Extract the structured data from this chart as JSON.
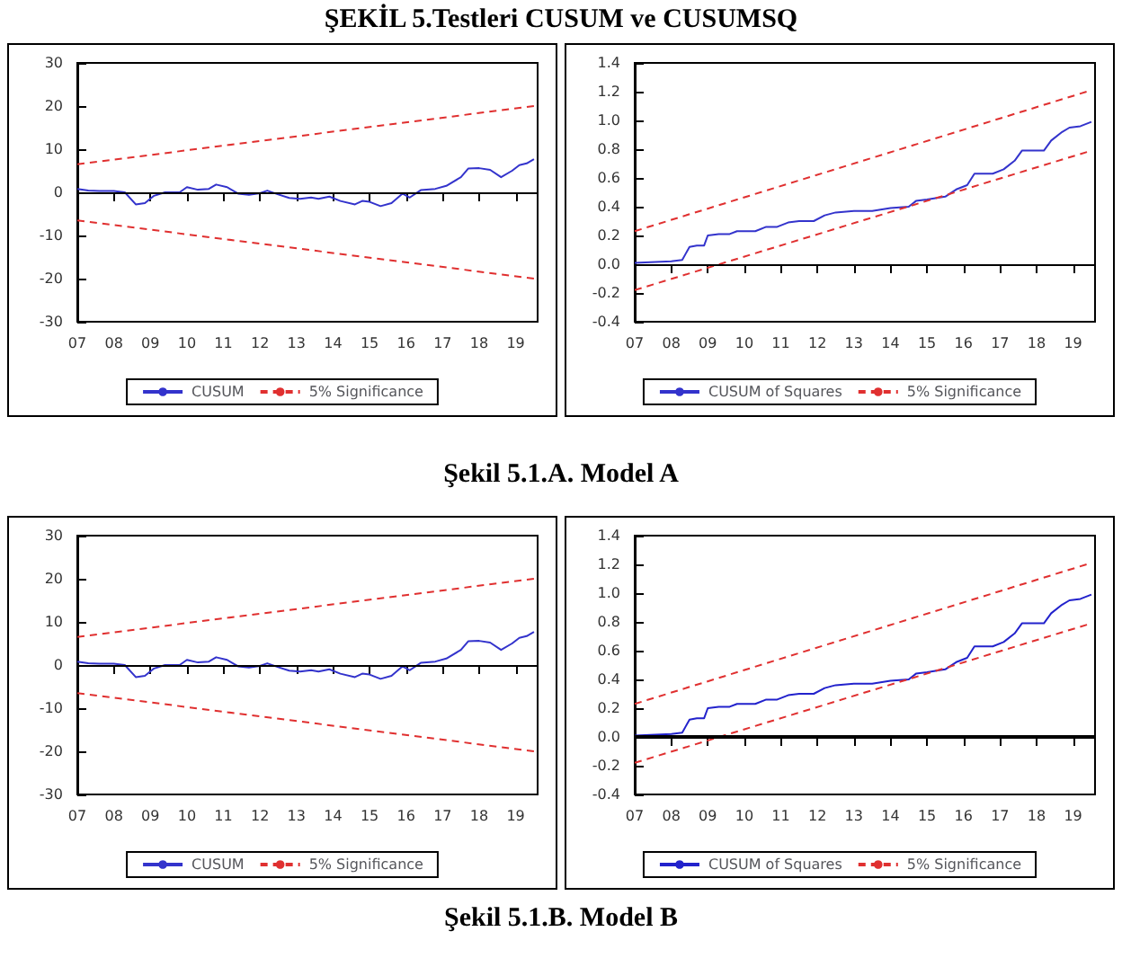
{
  "chart_data": [
    {
      "type": "line",
      "title": "ŞEKİL 5.Testleri CUSUM ve CUSUMSQ",
      "xlim": [
        2007,
        2019.6
      ],
      "ylim": [
        -30,
        30
      ],
      "yticks": [
        -30,
        -20,
        -10,
        0,
        10,
        20,
        30
      ],
      "xticks": [
        {
          "value": 2007,
          "label": "07"
        },
        {
          "value": 2008,
          "label": "08"
        },
        {
          "value": 2009,
          "label": "09"
        },
        {
          "value": 2010,
          "label": "10"
        },
        {
          "value": 2011,
          "label": "11"
        },
        {
          "value": 2012,
          "label": "12"
        },
        {
          "value": 2013,
          "label": "13"
        },
        {
          "value": 2014,
          "label": "14"
        },
        {
          "value": 2015,
          "label": "15"
        },
        {
          "value": 2016,
          "label": "16"
        },
        {
          "value": 2017,
          "label": "17"
        },
        {
          "value": 2018,
          "label": "18"
        },
        {
          "value": 2019,
          "label": "19"
        }
      ],
      "legend": "bottom",
      "ref_lines": [
        {
          "axis": "y",
          "value": 0,
          "color": "#000000"
        }
      ],
      "series": [
        {
          "name": "CUSUM",
          "color": "#3333cc",
          "line_style": "solid",
          "x": [
            2007,
            2007.3,
            2007.6,
            2008,
            2008.3,
            2008.6,
            2008.85,
            2009.1,
            2009.4,
            2009.8,
            2010,
            2010.3,
            2010.6,
            2010.8,
            2011.1,
            2011.4,
            2011.7,
            2012,
            2012.2,
            2012.5,
            2012.8,
            2013.1,
            2013.4,
            2013.6,
            2013.9,
            2014.2,
            2014.6,
            2014.8,
            2015,
            2015.3,
            2015.6,
            2015.9,
            2016.1,
            2016.4,
            2016.8,
            2017.1,
            2017.5,
            2017.7,
            2018,
            2018.3,
            2018.6,
            2018.9,
            2019.1,
            2019.3,
            2019.5
          ],
          "values": [
            0.8,
            0.4,
            0.3,
            0.3,
            0,
            -2.8,
            -2.5,
            -0.8,
            0,
            0,
            1.2,
            0.6,
            0.8,
            1.8,
            1.2,
            -0.3,
            -0.6,
            -0.2,
            0.4,
            -0.5,
            -1.3,
            -1.5,
            -1.2,
            -1.5,
            -1,
            -2,
            -2.8,
            -2,
            -2.2,
            -3.2,
            -2.5,
            -0.3,
            -1.2,
            0.5,
            0.8,
            1.5,
            3.5,
            5.5,
            5.6,
            5.2,
            3.5,
            5,
            6.3,
            6.7,
            7.7
          ]
        },
        {
          "name": "5% Significance",
          "color": "#e03030",
          "line_style": "dashed",
          "x": [
            2007,
            2019.5
          ],
          "values": [
            6.5,
            20
          ]
        },
        {
          "color": "#e03030",
          "line_style": "dashed",
          "x": [
            2007,
            2019.5
          ],
          "values": [
            -6.5,
            -20
          ]
        }
      ]
    },
    {
      "type": "line",
      "xlim": [
        2007,
        2019.6
      ],
      "ylim": [
        -0.4,
        1.4
      ],
      "yticks": [
        {
          "value": -0.4,
          "label": "-0.4"
        },
        {
          "value": -0.2,
          "label": "-0.2"
        },
        {
          "value": 0,
          "label": "0.0"
        },
        {
          "value": 0.2,
          "label": "0.2"
        },
        {
          "value": 0.4,
          "label": "0.4"
        },
        {
          "value": 0.6,
          "label": "0.6"
        },
        {
          "value": 0.8,
          "label": "0.8"
        },
        {
          "value": 1,
          "label": "1.0"
        },
        {
          "value": 1.2,
          "label": "1.2"
        },
        {
          "value": 1.4,
          "label": "1.4"
        }
      ],
      "xticks": [
        {
          "value": 2007,
          "label": "07"
        },
        {
          "value": 2008,
          "label": "08"
        },
        {
          "value": 2009,
          "label": "09"
        },
        {
          "value": 2010,
          "label": "10"
        },
        {
          "value": 2011,
          "label": "11"
        },
        {
          "value": 2012,
          "label": "12"
        },
        {
          "value": 2013,
          "label": "13"
        },
        {
          "value": 2014,
          "label": "14"
        },
        {
          "value": 2015,
          "label": "15"
        },
        {
          "value": 2016,
          "label": "16"
        },
        {
          "value": 2017,
          "label": "17"
        },
        {
          "value": 2018,
          "label": "18"
        },
        {
          "value": 2019,
          "label": "19"
        }
      ],
      "legend": "bottom",
      "ref_lines": [
        {
          "axis": "y",
          "value": 0,
          "color": "#000000"
        }
      ],
      "annotations": [
        "Şekil 5.1.A. Model A"
      ],
      "series": [
        {
          "name": "CUSUM of Squares",
          "color": "#3333cc",
          "line_style": "solid",
          "x": [
            2007,
            2008,
            2008.3,
            2008.5,
            2008.7,
            2008.9,
            2009,
            2009.3,
            2009.6,
            2009.8,
            2010.3,
            2010.6,
            2010.9,
            2011.2,
            2011.5,
            2011.9,
            2012.2,
            2012.5,
            2013,
            2013.5,
            2014,
            2014.5,
            2014.7,
            2015,
            2015.5,
            2015.8,
            2016.1,
            2016.3,
            2016.8,
            2017.1,
            2017.4,
            2017.6,
            2018.2,
            2018.4,
            2018.7,
            2018.9,
            2019.2,
            2019.5
          ],
          "values": [
            0.01,
            0.02,
            0.03,
            0.12,
            0.13,
            0.13,
            0.2,
            0.21,
            0.21,
            0.23,
            0.23,
            0.26,
            0.26,
            0.29,
            0.3,
            0.3,
            0.34,
            0.36,
            0.37,
            0.37,
            0.39,
            0.4,
            0.44,
            0.45,
            0.47,
            0.52,
            0.55,
            0.63,
            0.63,
            0.66,
            0.72,
            0.79,
            0.79,
            0.86,
            0.92,
            0.95,
            0.96,
            0.99
          ]
        },
        {
          "name": "5% Significance",
          "color": "#e03030",
          "line_style": "dashed",
          "x": [
            2007,
            2019.5
          ],
          "values": [
            0.23,
            1.21
          ]
        },
        {
          "color": "#e03030",
          "line_style": "dashed",
          "x": [
            2007,
            2019.5
          ],
          "values": [
            -0.18,
            0.79
          ]
        }
      ]
    },
    {
      "type": "line",
      "xlim": [
        2007,
        2019.6
      ],
      "ylim": [
        -30,
        30
      ],
      "yticks": [
        -30,
        -20,
        -10,
        0,
        10,
        20,
        30
      ],
      "xticks": [
        {
          "value": 2007,
          "label": "07"
        },
        {
          "value": 2008,
          "label": "08"
        },
        {
          "value": 2009,
          "label": "09"
        },
        {
          "value": 2010,
          "label": "10"
        },
        {
          "value": 2011,
          "label": "11"
        },
        {
          "value": 2012,
          "label": "12"
        },
        {
          "value": 2013,
          "label": "13"
        },
        {
          "value": 2014,
          "label": "14"
        },
        {
          "value": 2015,
          "label": "15"
        },
        {
          "value": 2016,
          "label": "16"
        },
        {
          "value": 2017,
          "label": "17"
        },
        {
          "value": 2018,
          "label": "18"
        },
        {
          "value": 2019,
          "label": "19"
        }
      ],
      "legend": "bottom",
      "ref_lines": [
        {
          "axis": "y",
          "value": 0,
          "color": "#000000"
        }
      ],
      "series": [
        {
          "name": "CUSUM",
          "color": "#3333cc",
          "line_style": "solid",
          "x": [
            2007,
            2007.3,
            2007.6,
            2008,
            2008.3,
            2008.6,
            2008.85,
            2009.1,
            2009.4,
            2009.8,
            2010,
            2010.3,
            2010.6,
            2010.8,
            2011.1,
            2011.4,
            2011.7,
            2012,
            2012.2,
            2012.5,
            2012.8,
            2013.1,
            2013.4,
            2013.6,
            2013.9,
            2014.2,
            2014.6,
            2014.8,
            2015,
            2015.3,
            2015.6,
            2015.9,
            2016.1,
            2016.4,
            2016.8,
            2017.1,
            2017.5,
            2017.7,
            2018,
            2018.3,
            2018.6,
            2018.9,
            2019.1,
            2019.3,
            2019.5
          ],
          "values": [
            0.8,
            0.4,
            0.3,
            0.3,
            0,
            -2.8,
            -2.5,
            -0.8,
            0,
            0,
            1.2,
            0.6,
            0.8,
            1.8,
            1.2,
            -0.3,
            -0.6,
            -0.2,
            0.4,
            -0.5,
            -1.3,
            -1.5,
            -1.2,
            -1.5,
            -1,
            -2,
            -2.8,
            -2,
            -2.2,
            -3.2,
            -2.5,
            -0.3,
            -1.2,
            0.5,
            0.8,
            1.5,
            3.5,
            5.5,
            5.6,
            5.2,
            3.5,
            5,
            6.3,
            6.7,
            7.7
          ]
        },
        {
          "name": "5% Significance",
          "color": "#e03030",
          "line_style": "dashed",
          "x": [
            2007,
            2019.5
          ],
          "values": [
            6.5,
            20
          ]
        },
        {
          "color": "#e03030",
          "line_style": "dashed",
          "x": [
            2007,
            2019.5
          ],
          "values": [
            -6.5,
            -20
          ]
        }
      ]
    },
    {
      "type": "line",
      "xlim": [
        2007,
        2019.6
      ],
      "ylim": [
        -0.4,
        1.4
      ],
      "yticks": [
        {
          "value": -0.4,
          "label": "-0.4"
        },
        {
          "value": -0.2,
          "label": "-0.2"
        },
        {
          "value": 0,
          "label": "0.0"
        },
        {
          "value": 0.2,
          "label": "0.2"
        },
        {
          "value": 0.4,
          "label": "0.4"
        },
        {
          "value": 0.6,
          "label": "0.6"
        },
        {
          "value": 0.8,
          "label": "0.8"
        },
        {
          "value": 1,
          "label": "1.0"
        },
        {
          "value": 1.2,
          "label": "1.2"
        },
        {
          "value": 1.4,
          "label": "1.4"
        }
      ],
      "xticks": [
        {
          "value": 2007,
          "label": "07"
        },
        {
          "value": 2008,
          "label": "08"
        },
        {
          "value": 2009,
          "label": "09"
        },
        {
          "value": 2010,
          "label": "10"
        },
        {
          "value": 2011,
          "label": "11"
        },
        {
          "value": 2012,
          "label": "12"
        },
        {
          "value": 2013,
          "label": "13"
        },
        {
          "value": 2014,
          "label": "14"
        },
        {
          "value": 2015,
          "label": "15"
        },
        {
          "value": 2016,
          "label": "16"
        },
        {
          "value": 2017,
          "label": "17"
        },
        {
          "value": 2018,
          "label": "18"
        },
        {
          "value": 2019,
          "label": "19"
        }
      ],
      "legend": "bottom",
      "ref_lines": [
        {
          "axis": "y",
          "value": 0,
          "color": "#000000"
        }
      ],
      "annotations": [
        "Şekil 5.1.B. Model B"
      ],
      "series": [
        {
          "name": "CUSUM of Squares",
          "color": "#2222cc",
          "line_style": "solid",
          "x": [
            2007,
            2008,
            2008.3,
            2008.5,
            2008.7,
            2008.9,
            2009,
            2009.3,
            2009.6,
            2009.8,
            2010.3,
            2010.6,
            2010.9,
            2011.2,
            2011.5,
            2011.9,
            2012.2,
            2012.5,
            2013,
            2013.5,
            2014,
            2014.5,
            2014.7,
            2015,
            2015.5,
            2015.8,
            2016.1,
            2016.3,
            2016.8,
            2017.1,
            2017.4,
            2017.6,
            2018.2,
            2018.4,
            2018.7,
            2018.9,
            2019.2,
            2019.5
          ],
          "values": [
            0.01,
            0.02,
            0.03,
            0.12,
            0.13,
            0.13,
            0.2,
            0.21,
            0.21,
            0.23,
            0.23,
            0.26,
            0.26,
            0.29,
            0.3,
            0.3,
            0.34,
            0.36,
            0.37,
            0.37,
            0.39,
            0.4,
            0.44,
            0.45,
            0.47,
            0.52,
            0.55,
            0.63,
            0.63,
            0.66,
            0.72,
            0.79,
            0.79,
            0.86,
            0.92,
            0.95,
            0.96,
            0.99
          ]
        },
        {
          "name": "5% Significance",
          "color": "#e03030",
          "line_style": "dashed",
          "x": [
            2007,
            2019.5
          ],
          "values": [
            0.23,
            1.21
          ]
        },
        {
          "color": "#e03030",
          "line_style": "dashed",
          "x": [
            2007,
            2019.5
          ],
          "values": [
            -0.18,
            0.79
          ]
        }
      ]
    }
  ]
}
